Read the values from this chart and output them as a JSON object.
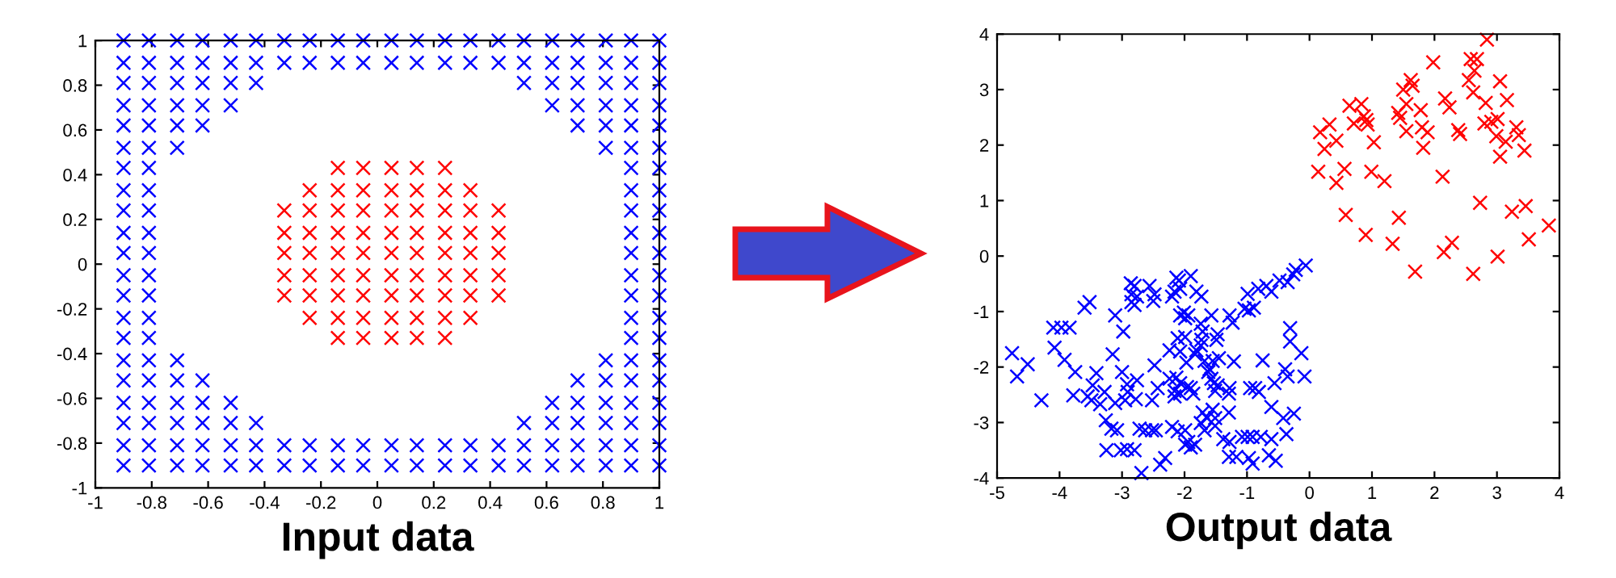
{
  "chart_data": [
    {
      "type": "scatter",
      "xlabel": "Input data",
      "xlim": [
        -1,
        1
      ],
      "ylim": [
        -1,
        1
      ],
      "xticks": [
        -1,
        -0.8,
        -0.6,
        -0.4,
        -0.2,
        0,
        0.2,
        0.4,
        0.6,
        0.8,
        1
      ],
      "yticks": [
        -1,
        -0.8,
        -0.6,
        -0.4,
        -0.2,
        0,
        0.2,
        0.4,
        0.6,
        0.8,
        1
      ],
      "marker": "cross",
      "series": [
        {
          "color": "#0000ff",
          "x": [
            -0.9,
            -0.81,
            -0.71,
            -0.62,
            -0.52,
            -0.43,
            -0.33,
            -0.24,
            -0.14,
            -0.05,
            0.05,
            0.14,
            0.24,
            0.33,
            0.43,
            0.52,
            0.62,
            0.71,
            0.81,
            0.9,
            1,
            -0.9,
            -0.81,
            -0.71,
            -0.62,
            -0.52,
            -0.43,
            -0.33,
            -0.24,
            -0.14,
            -0.05,
            0.05,
            0.14,
            0.24,
            0.33,
            0.43,
            0.52,
            0.62,
            0.71,
            0.81,
            0.9,
            1,
            -0.9,
            -0.81,
            -0.71,
            -0.62,
            -0.52,
            -0.43,
            0.52,
            0.62,
            0.71,
            0.81,
            0.9,
            1,
            -0.9,
            -0.81,
            -0.71,
            -0.62,
            -0.52,
            0.62,
            0.71,
            0.81,
            0.9,
            1,
            -0.9,
            -0.81,
            -0.71,
            -0.62,
            0.71,
            0.81,
            0.9,
            1,
            -0.9,
            -0.81,
            -0.71,
            0.81,
            0.9,
            1,
            -0.9,
            -0.81,
            0.9,
            1,
            -0.9,
            -0.81,
            0.9,
            1,
            -0.9,
            -0.81,
            0.9,
            1,
            -0.9,
            -0.81,
            0.9,
            1,
            -0.9,
            -0.81,
            0.9,
            1,
            -0.9,
            -0.81,
            0.9,
            1,
            -0.9,
            -0.81,
            0.9,
            1,
            -0.9,
            -0.81,
            0.9,
            1,
            -0.9,
            -0.81,
            0.9,
            1,
            -0.9,
            -0.81,
            -0.71,
            0.81,
            0.9,
            1,
            -0.9,
            -0.81,
            -0.71,
            -0.62,
            0.71,
            0.81,
            0.9,
            1,
            -0.9,
            -0.81,
            -0.71,
            -0.62,
            -0.52,
            0.62,
            0.71,
            0.81,
            0.9,
            1,
            -0.9,
            -0.81,
            -0.71,
            -0.62,
            -0.52,
            -0.43,
            0.52,
            0.62,
            0.71,
            0.81,
            0.9,
            1,
            -0.9,
            -0.81,
            -0.71,
            -0.62,
            -0.52,
            -0.43,
            -0.33,
            -0.24,
            -0.14,
            -0.05,
            0.05,
            0.14,
            0.24,
            0.33,
            0.43,
            0.52,
            0.62,
            0.71,
            0.81,
            0.9,
            1,
            -0.9,
            -0.81,
            -0.71,
            -0.62,
            -0.52,
            -0.43,
            -0.33,
            -0.24,
            -0.14,
            -0.05,
            0.05,
            0.14,
            0.24,
            0.33,
            0.43,
            0.52,
            0.62,
            0.71,
            0.81,
            0.9,
            1
          ],
          "values": [
            1,
            1,
            1,
            1,
            1,
            1,
            1,
            1,
            1,
            1,
            1,
            1,
            1,
            1,
            1,
            1,
            1,
            1,
            1,
            1,
            1,
            0.9,
            0.9,
            0.9,
            0.9,
            0.9,
            0.9,
            0.9,
            0.9,
            0.9,
            0.9,
            0.9,
            0.9,
            0.9,
            0.9,
            0.9,
            0.9,
            0.9,
            0.9,
            0.9,
            0.9,
            0.9,
            0.81,
            0.81,
            0.81,
            0.81,
            0.81,
            0.81,
            0.81,
            0.81,
            0.81,
            0.81,
            0.81,
            0.81,
            0.71,
            0.71,
            0.71,
            0.71,
            0.71,
            0.71,
            0.71,
            0.71,
            0.71,
            0.71,
            0.62,
            0.62,
            0.62,
            0.62,
            0.62,
            0.62,
            0.62,
            0.62,
            0.52,
            0.52,
            0.52,
            0.52,
            0.52,
            0.52,
            0.43,
            0.43,
            0.43,
            0.43,
            0.33,
            0.33,
            0.33,
            0.33,
            0.24,
            0.24,
            0.24,
            0.24,
            0.14,
            0.14,
            0.14,
            0.14,
            0.05,
            0.05,
            0.05,
            0.05,
            -0.05,
            -0.05,
            -0.05,
            -0.05,
            -0.14,
            -0.14,
            -0.14,
            -0.14,
            -0.24,
            -0.24,
            -0.24,
            -0.24,
            -0.33,
            -0.33,
            -0.33,
            -0.33,
            -0.43,
            -0.43,
            -0.43,
            -0.43,
            -0.43,
            -0.43,
            -0.52,
            -0.52,
            -0.52,
            -0.52,
            -0.52,
            -0.52,
            -0.52,
            -0.52,
            -0.62,
            -0.62,
            -0.62,
            -0.62,
            -0.62,
            -0.62,
            -0.62,
            -0.62,
            -0.62,
            -0.62,
            -0.71,
            -0.71,
            -0.71,
            -0.71,
            -0.71,
            -0.71,
            -0.71,
            -0.71,
            -0.71,
            -0.71,
            -0.71,
            -0.71,
            -0.81,
            -0.81,
            -0.81,
            -0.81,
            -0.81,
            -0.81,
            -0.81,
            -0.81,
            -0.81,
            -0.81,
            -0.81,
            -0.81,
            -0.81,
            -0.81,
            -0.81,
            -0.81,
            -0.81,
            -0.81,
            -0.81,
            -0.81,
            -0.81,
            -0.9,
            -0.9,
            -0.9,
            -0.9,
            -0.9,
            -0.9,
            -0.9,
            -0.9,
            -0.9,
            -0.9,
            -0.9,
            -0.9,
            -0.9,
            -0.9,
            -0.9,
            -0.9,
            -0.9,
            -0.9,
            -0.9,
            -0.9,
            -0.9
          ]
        },
        {
          "color": "#ff0000",
          "x": [
            -0.14,
            -0.05,
            0.05,
            0.14,
            0.24,
            -0.24,
            -0.14,
            -0.05,
            0.05,
            0.14,
            0.24,
            0.33,
            -0.33,
            -0.24,
            -0.14,
            -0.05,
            0.05,
            0.14,
            0.24,
            0.33,
            0.43,
            -0.33,
            -0.24,
            -0.14,
            -0.05,
            0.05,
            0.14,
            0.24,
            0.33,
            0.43,
            -0.33,
            -0.24,
            -0.14,
            -0.05,
            0.05,
            0.14,
            0.24,
            0.33,
            0.43,
            -0.33,
            -0.24,
            -0.14,
            -0.05,
            0.05,
            0.14,
            0.24,
            0.33,
            0.43,
            -0.33,
            -0.24,
            -0.14,
            -0.05,
            0.05,
            0.14,
            0.24,
            0.33,
            0.43,
            -0.24,
            -0.14,
            -0.05,
            0.05,
            0.14,
            0.24,
            0.33,
            -0.14,
            -0.05,
            0.05,
            0.14,
            0.24
          ],
          "values": [
            0.43,
            0.43,
            0.43,
            0.43,
            0.43,
            0.33,
            0.33,
            0.33,
            0.33,
            0.33,
            0.33,
            0.33,
            0.24,
            0.24,
            0.24,
            0.24,
            0.24,
            0.24,
            0.24,
            0.24,
            0.24,
            0.14,
            0.14,
            0.14,
            0.14,
            0.14,
            0.14,
            0.14,
            0.14,
            0.14,
            0.05,
            0.05,
            0.05,
            0.05,
            0.05,
            0.05,
            0.05,
            0.05,
            0.05,
            -0.05,
            -0.05,
            -0.05,
            -0.05,
            -0.05,
            -0.05,
            -0.05,
            -0.05,
            -0.05,
            -0.14,
            -0.14,
            -0.14,
            -0.14,
            -0.14,
            -0.14,
            -0.14,
            -0.14,
            -0.14,
            -0.24,
            -0.24,
            -0.24,
            -0.24,
            -0.24,
            -0.24,
            -0.24,
            -0.33,
            -0.33,
            -0.33,
            -0.33,
            -0.33
          ]
        }
      ]
    },
    {
      "type": "scatter",
      "xlabel": "Output data",
      "xlim": [
        -5,
        4
      ],
      "ylim": [
        -4,
        4
      ],
      "xticks": [
        -5,
        -4,
        -3,
        -2,
        -1,
        0,
        1,
        2,
        3,
        4
      ],
      "yticks": [
        -4,
        -3,
        -2,
        -1,
        0,
        1,
        2,
        3,
        4
      ],
      "marker": "cross",
      "series": [
        {
          "color": "#0000ff",
          "x": [
            -4.76,
            -4.68,
            -4.51,
            -4.29,
            -4.1,
            -3.97,
            -3.84,
            -4.08,
            -3.92,
            -3.75,
            -3.78,
            -3.6,
            -3.52,
            -3.41,
            -3.47,
            -3.55,
            -3.49,
            -3.35,
            -3.28,
            -3.26,
            -3.17,
            -3.08,
            -3.25,
            -3.02,
            -2.92,
            -2.8,
            -3.15,
            -3.11,
            -2.98,
            -3,
            -3.11,
            -2.95,
            -2.91,
            -2.92,
            -2.76,
            -2.86,
            -2.8,
            -2.85,
            -2.85,
            -2.76,
            -2.8,
            -2.69,
            -2.72,
            -2.63,
            -2.52,
            -2.46,
            -2.78,
            -2.56,
            -2.48,
            -2.5,
            -2.48,
            -2.43,
            -2.52,
            -2.39,
            -2.31,
            -2.2,
            -2.16,
            -2.09,
            -2.07,
            -2.13,
            -1.9,
            -1.81,
            -1.73,
            -2.07,
            -2.01,
            -1.94,
            -1.99,
            -2.11,
            -1.99,
            -2.24,
            -2.07,
            -1.97,
            -2.24,
            -2.13,
            -2.07,
            -2.16,
            -2.07,
            -1.96,
            -2.16,
            -1.9,
            -1.86,
            -2.2,
            -2.11,
            -1.99,
            -1.99,
            -1.9,
            -1.83,
            -1.94,
            -1.74,
            -1.71,
            -1.74,
            -1.81,
            -1.83,
            -1.68,
            -1.6,
            -1.62,
            -1.57,
            -1.53,
            -1.47,
            -1.51,
            -1.45,
            -1.55,
            -1.57,
            -1.47,
            -1.49,
            -1.73,
            -1.71,
            -1.64,
            -1.74,
            -1.68,
            -1.55,
            -1.51,
            -1.51,
            -1.38,
            -1.28,
            -1.29,
            -1.17,
            -1.28,
            -1.23,
            -1.21,
            -1.28,
            -1.29,
            -1.29,
            -1.08,
            -0.99,
            -0.91,
            -0.97,
            -0.91,
            -0.78,
            -0.61,
            -0.99,
            -0.89,
            -0.97,
            -1.04,
            -0.95,
            -0.87,
            -0.81,
            -0.75,
            -0.82,
            -0.69,
            -0.61,
            -0.48,
            -0.35,
            -0.26,
            -0.22,
            -0.06,
            -0.31,
            -0.31,
            -0.13,
            -0.08,
            -0.39,
            -0.35,
            -0.56,
            -0.25,
            -0.42,
            -0.61,
            -0.37,
            -0.54,
            -0.65
          ],
          "values": [
            -1.75,
            -2.17,
            -1.95,
            -2.6,
            -1.29,
            -1.29,
            -1.29,
            -1.65,
            -1.87,
            -2.09,
            -2.51,
            -0.93,
            -0.83,
            -2.11,
            -2.33,
            -2.53,
            -2.6,
            -2.67,
            -2.45,
            -2.96,
            -3.11,
            -3.14,
            -3.5,
            -3.5,
            -3.48,
            -3.5,
            -1.77,
            -1.07,
            -1.36,
            -2.09,
            -2.65,
            -2.6,
            -2.45,
            -2.31,
            -2.24,
            -0.49,
            -0.54,
            -0.69,
            -0.83,
            -0.73,
            -0.88,
            -3.91,
            -3.11,
            -3.14,
            -3.14,
            -3.14,
            -2.58,
            -0.54,
            -0.69,
            -0.81,
            -1.97,
            -2.38,
            -2.6,
            -3.76,
            -3.64,
            -0.73,
            -0.64,
            -0.44,
            -0.59,
            -0.39,
            -0.36,
            -0.64,
            -0.73,
            -1.07,
            -1.02,
            -1.07,
            -1.12,
            -1.48,
            -1.46,
            -1.7,
            -1.72,
            -1.92,
            -2.21,
            -2.19,
            -2.29,
            -2.43,
            -2.48,
            -2.36,
            -2.53,
            -2.38,
            -2.48,
            -3.08,
            -3.16,
            -3.14,
            -3.4,
            -3.45,
            -3.4,
            -3.35,
            -1.22,
            -1.36,
            -1.61,
            -1.7,
            -1.77,
            -1.89,
            -2.04,
            -2.09,
            -2.21,
            -2.29,
            -2.33,
            -2.43,
            -1.84,
            -1.89,
            -1.07,
            -1.41,
            -1.51,
            -1.51,
            -2.82,
            -2.92,
            -3.01,
            -3.14,
            -2.77,
            -2.92,
            -3.06,
            -3.3,
            -3.35,
            -3.62,
            -3.62,
            -1.07,
            -1.2,
            -1.9,
            -2.38,
            -2.48,
            -2.82,
            -3.26,
            -3.26,
            -3.26,
            -3.64,
            -3.74,
            -3.26,
            -3.3,
            -0.68,
            -0.93,
            -0.98,
            -0.95,
            -2.38,
            -2.38,
            -2.45,
            -1.88,
            -0.59,
            -0.54,
            -0.64,
            -0.44,
            -0.47,
            -0.33,
            -0.25,
            -0.17,
            -1.3,
            -1.54,
            -1.75,
            -2.17,
            -2.04,
            -2.17,
            -2.29,
            -2.84,
            -2.92,
            -2.72,
            -3.21,
            -3.69,
            -3.59
          ]
        },
        {
          "color": "#ff0000",
          "x": [
            2.84,
            1.98,
            2.58,
            2.68,
            2.64,
            2.55,
            3.05,
            1.62,
            1.65,
            1.5,
            2.62,
            2.17,
            2.24,
            3.16,
            1.55,
            1.42,
            1.45,
            1.78,
            0.64,
            0.83,
            0.87,
            0.91,
            0.93,
            0.71,
            0.32,
            0.43,
            0.17,
            0.24,
            1.03,
            1.8,
            1.89,
            1.55,
            1.82,
            2.38,
            2.41,
            2.8,
            2.91,
            3.01,
            2.82,
            2.99,
            3.14,
            3.31,
            3.35,
            3.44,
            3.05,
            0.14,
            0.56,
            0.43,
            0.99,
            1.2,
            2.13,
            2.73,
            3.24,
            3.46,
            3.83,
            0.58,
            1.43,
            0.9,
            1.33,
            2.28,
            2.15,
            3.51,
            3.01,
            1.69,
            2.62
          ],
          "values": [
            3.9,
            3.49,
            3.55,
            3.55,
            3.34,
            3.17,
            3.15,
            3.17,
            3.07,
            3,
            2.95,
            2.84,
            2.68,
            2.81,
            2.74,
            2.58,
            2.49,
            2.63,
            2.71,
            2.74,
            2.52,
            2.45,
            2.37,
            2.39,
            2.37,
            2.08,
            2.23,
            1.93,
            2.05,
            2.32,
            2.23,
            2.25,
            1.95,
            2.27,
            2.2,
            2.39,
            2.42,
            2.47,
            2.76,
            2.16,
            2.06,
            2.32,
            2.18,
            1.9,
            1.79,
            1.52,
            1.57,
            1.32,
            1.52,
            1.35,
            1.43,
            0.96,
            0.8,
            0.9,
            0.55,
            0.74,
            0.69,
            0.38,
            0.22,
            0.24,
            0.07,
            0.3,
            -0.01,
            -0.28,
            -0.32
          ]
        }
      ]
    }
  ]
}
